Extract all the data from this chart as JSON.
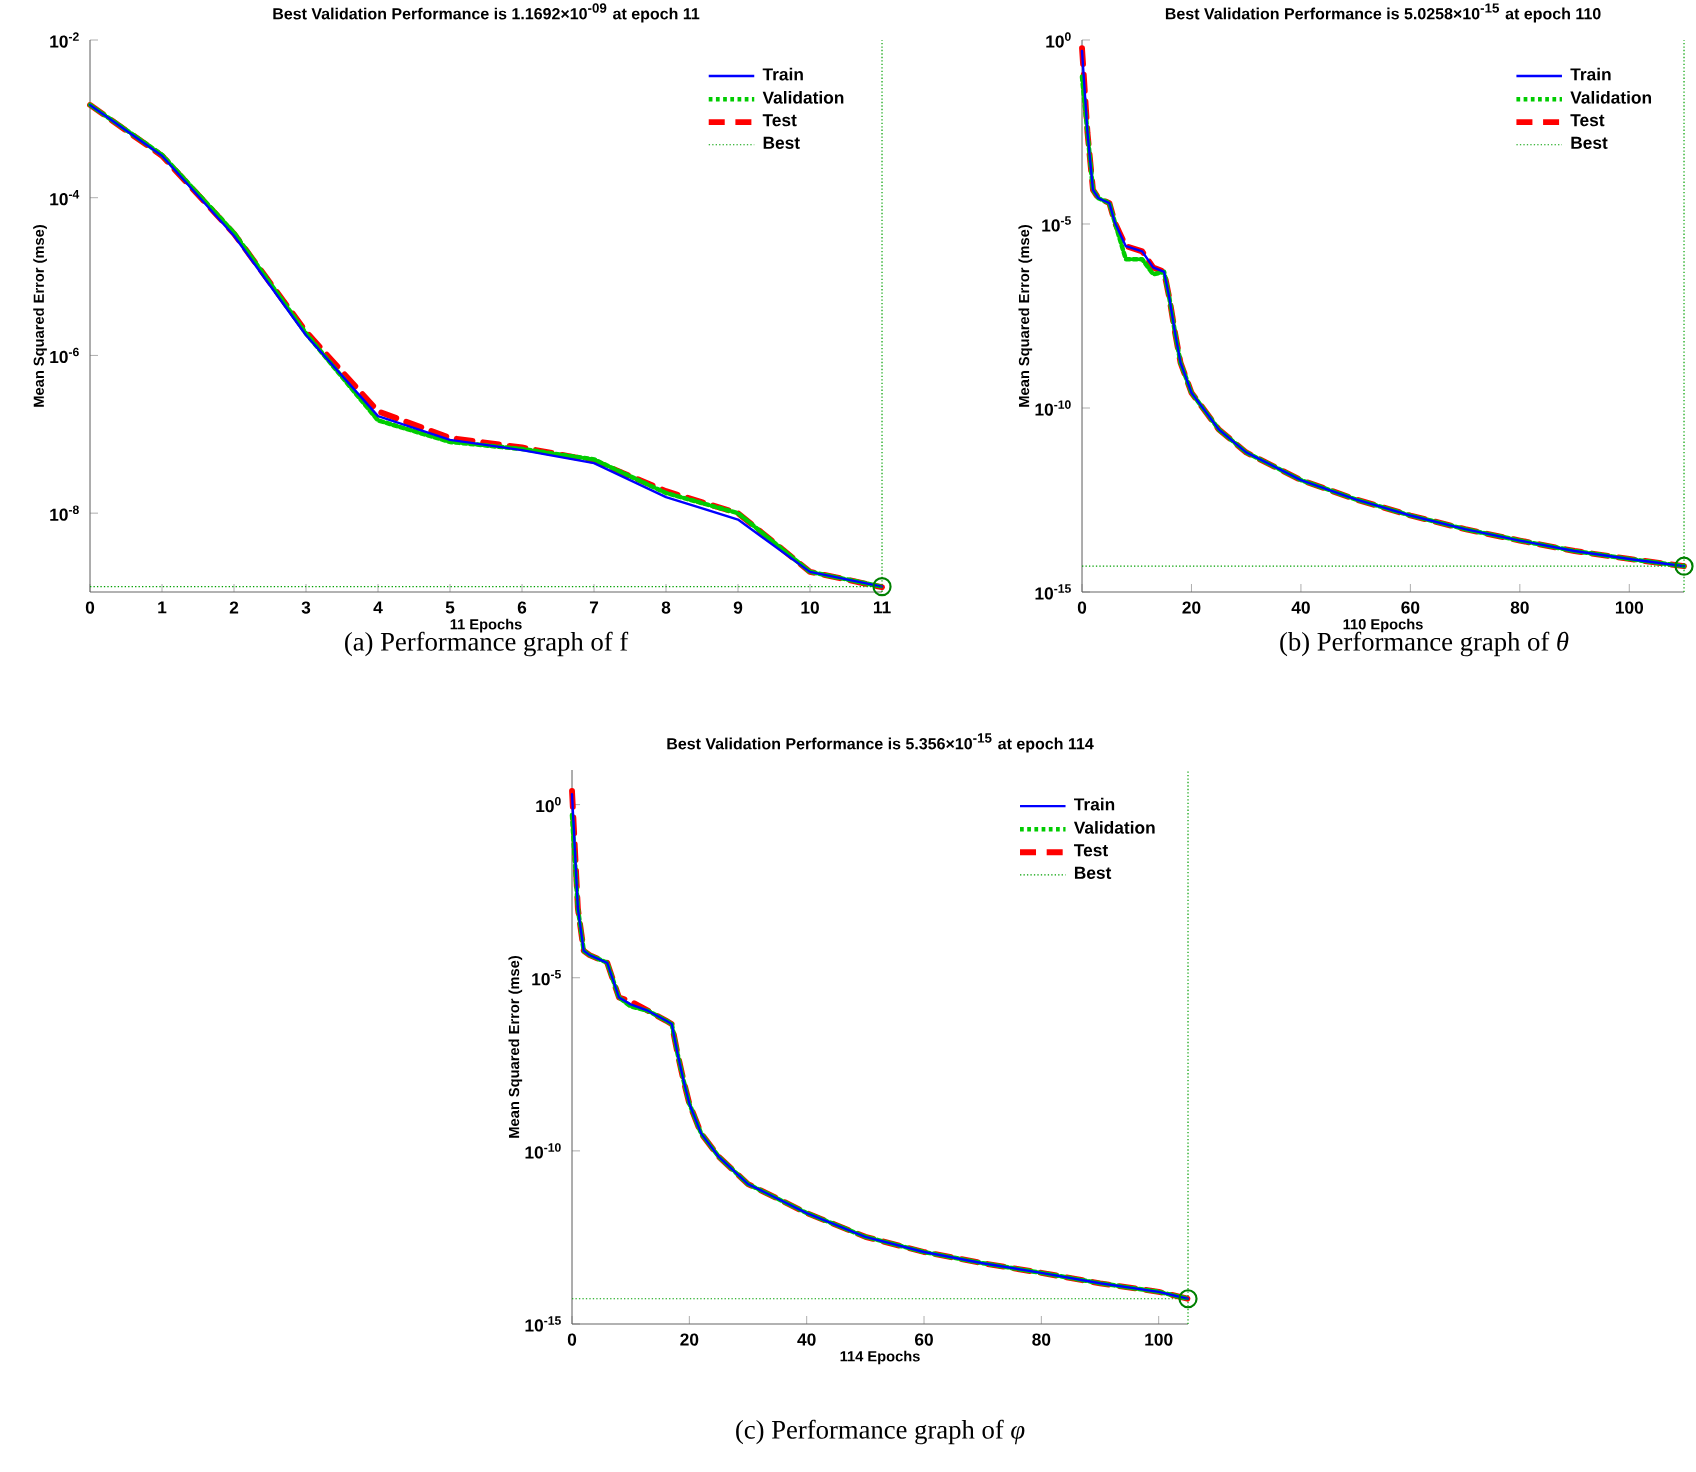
{
  "chart_data": [
    {
      "type": "line",
      "title": "Best Validation Performance is 1.1692×10$^{-09}$ at epoch 11",
      "xlabel": "11 Epochs",
      "ylabel": "Mean Squared Error  (mse)",
      "log": true,
      "legend": "top right",
      "x": [
        0,
        1,
        2,
        3,
        4,
        5,
        6,
        7,
        8,
        9,
        10,
        11
      ],
      "series": [
        {
          "name": "Train",
          "color": "#0000ff",
          "line_style": "solid",
          "values": [
            0.0015,
            0.00034,
            3.3e-05,
            1.8e-06,
            1.7e-07,
            8.5e-08,
            6.3e-08,
            4.3e-08,
            1.6e-08,
            8.3e-09,
            1.8e-09,
            1.17e-09
          ]
        },
        {
          "name": "Validation",
          "color": "#00cc00",
          "line_style": "dotted",
          "values": [
            0.0015,
            0.00035,
            3.6e-05,
            1.9e-06,
            1.5e-07,
            8e-08,
            6.5e-08,
            4.8e-08,
            1.8e-08,
            1e-08,
            1.8e-09,
            1.1692e-09
          ]
        },
        {
          "name": "Test",
          "color": "#ff0000",
          "line_style": "dashed",
          "values": [
            0.0015,
            0.00034,
            3.5e-05,
            2e-06,
            1.95e-07,
            9e-08,
            6.8e-08,
            4.6e-08,
            1.9e-08,
            1e-08,
            1.8e-09,
            1.15e-09
          ]
        },
        {
          "type": "scatter",
          "marker": "circle",
          "color": "#008000",
          "x": [
            11
          ],
          "values": [
            1.1692e-09
          ]
        }
      ],
      "ref_lines": [
        {
          "axis": "y",
          "value": 1.1692e-09,
          "label": "Best",
          "color": "#00a000",
          "line_style": "dotted"
        },
        {
          "axis": "x",
          "value": 11,
          "color": "#00a000",
          "line_style": "dotted"
        }
      ],
      "xlim": [
        0,
        11
      ],
      "ylim": [
        1e-09,
        0.01
      ],
      "xticks": [
        0,
        1,
        2,
        3,
        4,
        5,
        6,
        7,
        8,
        9,
        10,
        11
      ],
      "yticks": [
        {
          "value": 1e-08,
          "label": "10$^{-8}$"
        },
        {
          "value": 1e-06,
          "label": "10$^{-6}$"
        },
        {
          "value": 0.0001,
          "label": "10$^{-4}$"
        },
        {
          "value": 0.01,
          "label": "10$^{-2}$"
        }
      ],
      "annotations": [
        "(a) Performance graph of f"
      ]
    },
    {
      "type": "line",
      "title": "Best Validation Performance is 5.0258×10$^{-15}$ at epoch 110",
      "xlabel": "110 Epochs",
      "ylabel": "Mean Squared Error  (mse)",
      "log": true,
      "legend": "top right",
      "x": [
        0,
        1,
        2,
        3,
        5,
        6,
        8,
        11,
        13,
        15,
        16,
        17,
        18,
        20,
        25,
        30,
        40,
        50,
        60,
        70,
        80,
        90,
        100,
        110
      ],
      "series": [
        {
          "name": "Train",
          "color": "#0000ff",
          "line_style": "solid",
          "values": [
            0.5,
            0.003,
            8.5e-05,
            5e-05,
            3.7e-05,
            1.1e-05,
            2.5e-06,
            1.8e-06,
            6.6e-07,
            5e-07,
            9e-08,
            1.1e-08,
            1.7e-09,
            2.6e-10,
            2.6e-11,
            6.2e-12,
            1.1e-12,
            3.3e-13,
            1.2e-13,
            5.1e-14,
            2.5e-14,
            1.3e-14,
            7.9e-15,
            5.0258e-15
          ]
        },
        {
          "name": "Validation",
          "color": "#00cc00",
          "line_style": "dotted",
          "values": [
            0.1,
            0.003,
            8.5e-05,
            5e-05,
            3.7e-05,
            1.1e-05,
            1.1e-06,
            1.1e-06,
            4.3e-07,
            5e-07,
            9e-08,
            1.1e-08,
            1.7e-09,
            2.6e-10,
            2.6e-11,
            6.2e-12,
            1.1e-12,
            3.3e-13,
            1.2e-13,
            5.1e-14,
            2.5e-14,
            1.3e-14,
            7.9e-15,
            5.0258e-15
          ]
        },
        {
          "name": "Test",
          "color": "#ff0000",
          "line_style": "dashed",
          "values": [
            0.6,
            0.003,
            8.5e-05,
            5e-05,
            3.7e-05,
            1.1e-05,
            2.5e-06,
            1.8e-06,
            6.6e-07,
            5e-07,
            9e-08,
            1.1e-08,
            1.7e-09,
            2.6e-10,
            2.6e-11,
            6.2e-12,
            1.1e-12,
            3.3e-13,
            1.2e-13,
            5.1e-14,
            2.5e-14,
            1.3e-14,
            7.9e-15,
            5.0258e-15
          ]
        },
        {
          "type": "scatter",
          "marker": "circle",
          "color": "#008000",
          "x": [
            110
          ],
          "values": [
            5.0258e-15
          ]
        }
      ],
      "ref_lines": [
        {
          "axis": "y",
          "value": 5.0258e-15,
          "label": "Best",
          "color": "#00a000",
          "line_style": "dotted"
        },
        {
          "axis": "x",
          "value": 110,
          "color": "#00a000",
          "line_style": "dotted"
        }
      ],
      "xlim": [
        0,
        110
      ],
      "ylim": [
        1e-15,
        1
      ],
      "xticks": [
        0,
        20,
        40,
        60,
        80,
        100
      ],
      "yticks": [
        {
          "value": 1e-15,
          "label": "10$^{-15}$"
        },
        {
          "value": 1e-10,
          "label": "10$^{-10}$"
        },
        {
          "value": 1e-05,
          "label": "10$^{-5}$"
        },
        {
          "value": 1,
          "label": "10$^{0}$"
        }
      ],
      "annotations": [
        "(b) Performance graph of *θ*"
      ]
    },
    {
      "type": "line",
      "title": "Best Validation Performance is 5.356×10$^{-15}$ at epoch 114",
      "xlabel": "114 Epochs",
      "ylabel": "Mean Squared Error  (mse)",
      "log": true,
      "legend": "top right",
      "x": [
        0,
        1,
        2,
        3,
        6,
        8,
        10,
        13,
        16,
        17,
        18,
        19,
        20,
        22,
        25,
        30,
        40,
        50,
        60,
        70,
        80,
        90,
        100,
        105
      ],
      "series": [
        {
          "name": "Train",
          "color": "#0000ff",
          "line_style": "solid",
          "values": [
            2,
            0.001,
            6e-05,
            4.5e-05,
            2.7e-05,
            2.7e-06,
            1.7e-06,
            1.1e-06,
            5.8e-07,
            4.6e-07,
            6.3e-08,
            1.1e-08,
            2.3e-09,
            3.2e-10,
            6.8e-11,
            1.1e-11,
            1.6e-12,
            3.3e-13,
            1.2e-13,
            5.7e-14,
            3e-14,
            1.5e-14,
            8.5e-15,
            5.356e-15
          ]
        },
        {
          "name": "Validation",
          "color": "#00cc00",
          "line_style": "dotted",
          "values": [
            0.5,
            0.001,
            6e-05,
            4.5e-05,
            2.7e-05,
            2.7e-06,
            1.5e-06,
            1.1e-06,
            5.8e-07,
            4.6e-07,
            6.3e-08,
            1.1e-08,
            2.3e-09,
            3.2e-10,
            6.8e-11,
            1.1e-11,
            1.6e-12,
            3.3e-13,
            1.2e-13,
            5.7e-14,
            3e-14,
            1.5e-14,
            8.5e-15,
            5.356e-15
          ]
        },
        {
          "name": "Test",
          "color": "#ff0000",
          "line_style": "dashed",
          "values": [
            2.5,
            0.001,
            6e-05,
            4.5e-05,
            2.7e-05,
            2.7e-06,
            2.1e-06,
            1.1e-06,
            5.8e-07,
            4.6e-07,
            6.3e-08,
            1.1e-08,
            2.3e-09,
            3.2e-10,
            6.8e-11,
            1.1e-11,
            1.6e-12,
            3.3e-13,
            1.2e-13,
            5.7e-14,
            3e-14,
            1.5e-14,
            8.5e-15,
            5.356e-15
          ]
        },
        {
          "type": "scatter",
          "marker": "circle",
          "color": "#008000",
          "x": [
            105
          ],
          "values": [
            5.356e-15
          ]
        }
      ],
      "ref_lines": [
        {
          "axis": "y",
          "value": 5.356e-15,
          "label": "Best",
          "color": "#00a000",
          "line_style": "dotted"
        },
        {
          "axis": "x",
          "value": 105,
          "color": "#00a000",
          "line_style": "dotted"
        }
      ],
      "xlim": [
        0,
        105
      ],
      "ylim": [
        1e-15,
        10
      ],
      "xticks": [
        0,
        20,
        40,
        60,
        80,
        100
      ],
      "yticks": [
        {
          "value": 1e-15,
          "label": "10$^{-15}$"
        },
        {
          "value": 1e-10,
          "label": "10$^{-10}$"
        },
        {
          "value": 1e-05,
          "label": "10$^{-5}$"
        },
        {
          "value": 1,
          "label": "10$^{0}$"
        }
      ],
      "annotations": [
        "(c) Performance graph of *φ*"
      ]
    }
  ]
}
